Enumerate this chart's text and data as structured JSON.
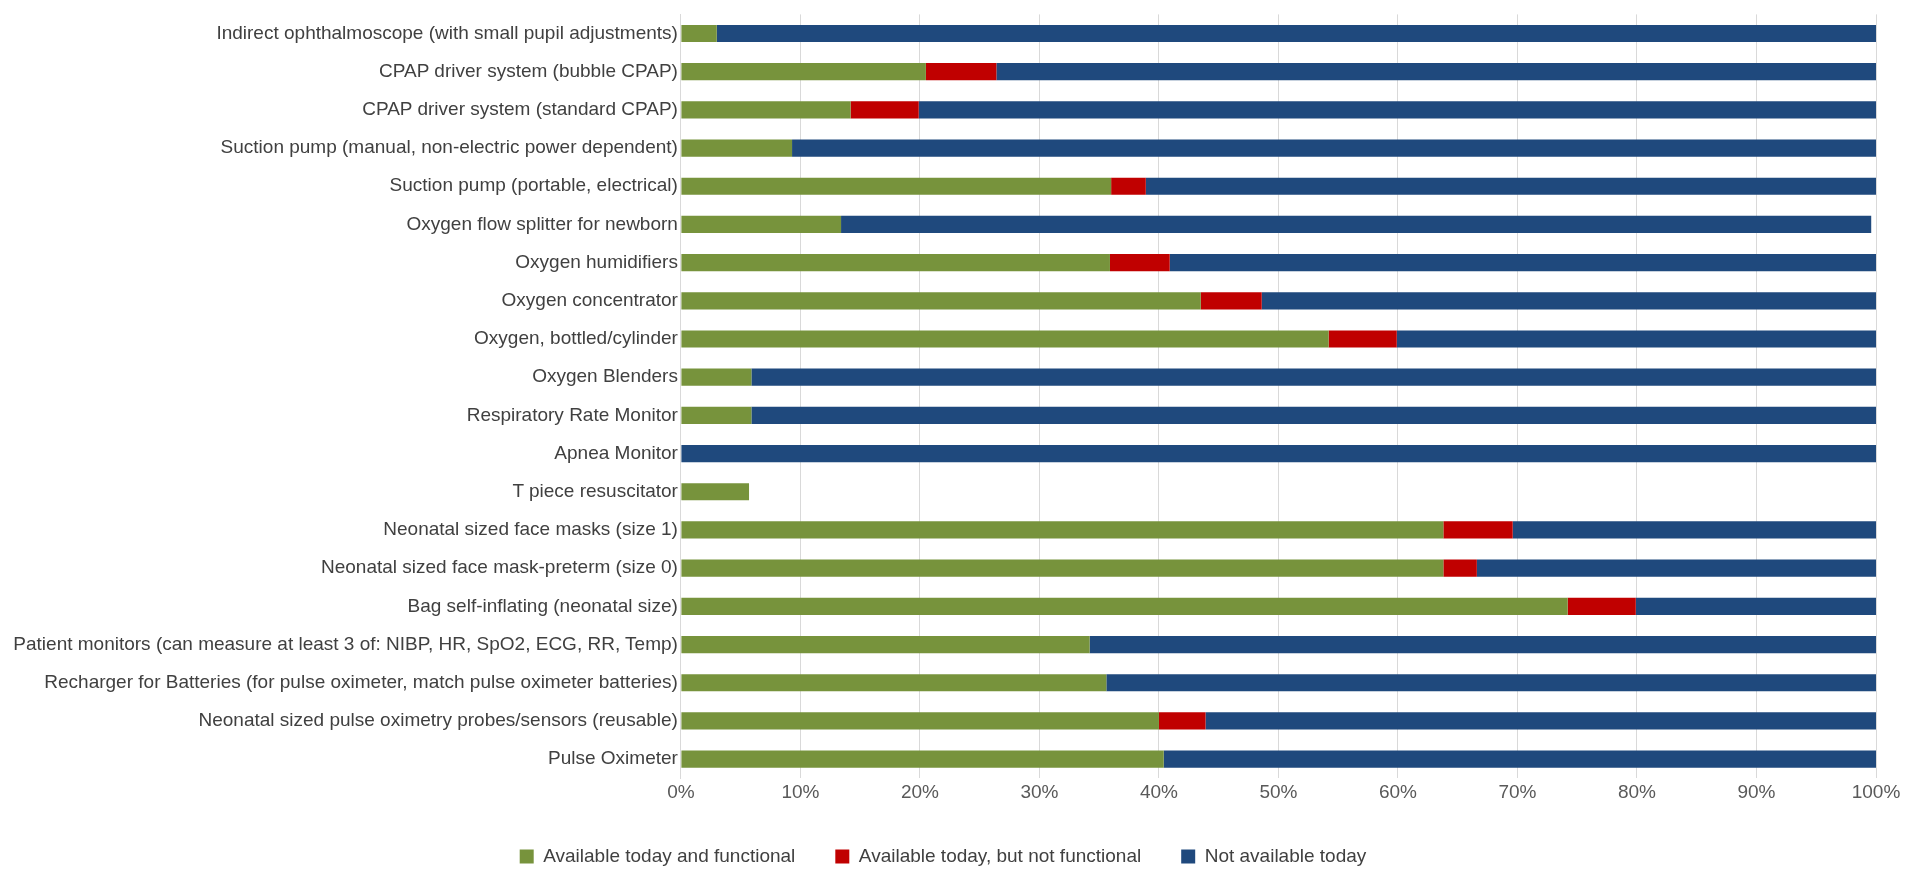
{
  "chart_data": {
    "type": "bar",
    "orientation": "horizontal",
    "stacked": true,
    "grid": "x",
    "legend": "bottom",
    "categories": [
      "Indirect ophthalmoscope (with small pupil adjustments)",
      "CPAP driver system (bubble CPAP)",
      "CPAP driver system (standard CPAP)",
      "Suction pump (manual, non-electric power dependent)",
      "Suction pump (portable, electrical)",
      "Oxygen flow splitter for newborn",
      "Oxygen humidifiers",
      "Oxygen concentrator",
      "Oxygen, bottled/cylinder",
      "Oxygen Blenders",
      "Respiratory Rate Monitor",
      "Apnea Monitor",
      "T piece resuscitator",
      "Neonatal sized face masks (size 1)",
      "Neonatal sized face mask-preterm (size 0)",
      "Bag self-inflating (neonatal size)",
      "Patient monitors (can measure at least 3 of: NIBP, HR, SpO2, ECG, RR, Temp)",
      "Recharger for Batteries (for pulse oximeter, match pulse oximeter batteries)",
      "Neonatal sized pulse oximetry probes/sensors (reusable)",
      "Pulse Oximeter"
    ],
    "series": [
      {
        "name": "Available today and functional",
        "color": "#77933c",
        "values": [
          3,
          20.5,
          14.2,
          9.3,
          36,
          13.4,
          35.9,
          43.5,
          54.2,
          5.9,
          5.9,
          0,
          5.7,
          63.8,
          63.8,
          74.2,
          34.2,
          35.6,
          40,
          40.4
        ]
      },
      {
        "name": "Available today, but not functional",
        "color": "#c00000",
        "values": [
          0,
          5.9,
          5.7,
          0,
          2.9,
          0,
          5,
          5.1,
          5.7,
          0,
          0,
          0,
          0,
          5.8,
          2.8,
          5.7,
          0,
          0,
          3.9,
          0
        ]
      },
      {
        "name": "Not available today",
        "color": "#1f497d",
        "values": [
          97,
          73.6,
          80.1,
          90.7,
          61.1,
          86.2,
          59.1,
          51.4,
          40.1,
          94.1,
          94.1,
          100,
          0,
          30.4,
          33.4,
          20.1,
          65.8,
          64.4,
          56.1,
          59.6
        ]
      }
    ],
    "xlim": [
      0,
      100
    ],
    "xticks": [
      {
        "value": 0,
        "label": "0%"
      },
      {
        "value": 10,
        "label": "10%"
      },
      {
        "value": 20,
        "label": "20%"
      },
      {
        "value": 30,
        "label": "30%"
      },
      {
        "value": 40,
        "label": "40%"
      },
      {
        "value": 50,
        "label": "50%"
      },
      {
        "value": 60,
        "label": "60%"
      },
      {
        "value": 70,
        "label": "70%"
      },
      {
        "value": 80,
        "label": "80%"
      },
      {
        "value": 90,
        "label": "90%"
      },
      {
        "value": 100,
        "label": "100%"
      }
    ]
  }
}
